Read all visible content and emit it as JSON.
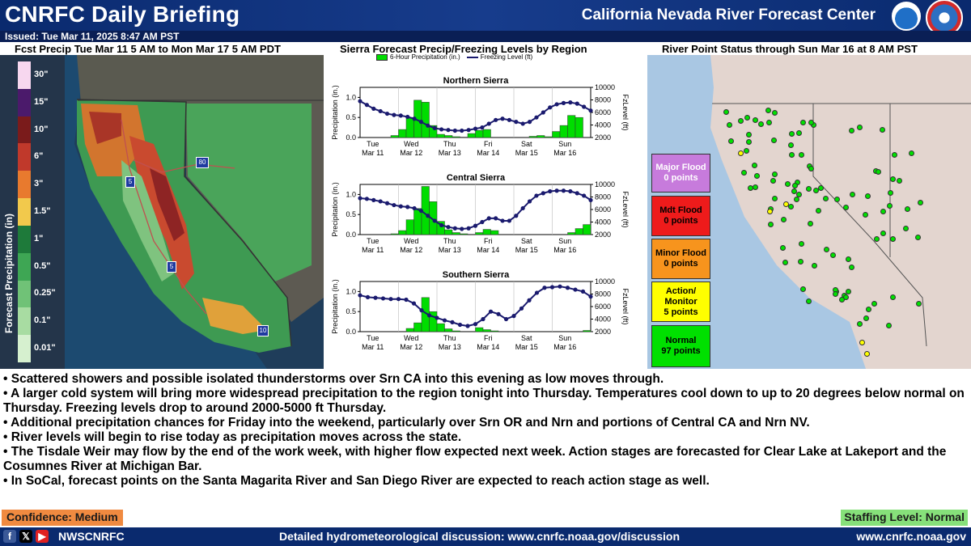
{
  "header": {
    "title": "CNRFC Daily Briefing",
    "center": "California Nevada River Forecast Center",
    "logo_noaa": "NOAA",
    "issued": "Issued: Tue Mar 11, 2025 8:47 AM PST"
  },
  "left_panel": {
    "title": "Fcst Precip Tue Mar 11 5 AM to Mon Mar 17 5 AM PDT",
    "colorbar_label": "Forecast Precipitation (in)",
    "colorbar": [
      {
        "label": "30\"",
        "color": "#f7d7ef"
      },
      {
        "label": "15\"",
        "color": "#4b1a6b"
      },
      {
        "label": "10\"",
        "color": "#7a1b1b"
      },
      {
        "label": "6\"",
        "color": "#c0392b"
      },
      {
        "label": "3\"",
        "color": "#e87a2e"
      },
      {
        "label": "1.5\"",
        "color": "#f2c94c"
      },
      {
        "label": "1\"",
        "color": "#1e7a3a"
      },
      {
        "label": "0.5\"",
        "color": "#3ea654"
      },
      {
        "label": "0.25\"",
        "color": "#70c277"
      },
      {
        "label": "0.1\"",
        "color": "#a8dca2"
      },
      {
        "label": "0.01\"",
        "color": "#d6f0cf"
      }
    ],
    "highways": [
      "80",
      "5",
      "5",
      "10"
    ]
  },
  "mid_panel": {
    "title": "Sierra Forecast Precip/Freezing Levels by Region",
    "legend_precip": "6-Hour Precipitation (in.)",
    "legend_frz": "Freezing Level (ft)",
    "precip_color": "#00dd00",
    "frz_color": "#1a1a6e"
  },
  "chart_data": [
    {
      "type": "bar",
      "title": "Northern Sierra",
      "ylabel": "Precipitation (in.)",
      "y2label": "FzLevel (ft)",
      "ylim": [
        0,
        1.25
      ],
      "y2lim": [
        2000,
        10000
      ],
      "yticks": [
        "0.0",
        "0.5",
        "1.0"
      ],
      "y2ticks": [
        "2000",
        "4000",
        "6000",
        "8000",
        "10000"
      ],
      "day_labels": [
        [
          "Tue",
          "Mar 11"
        ],
        [
          "Wed",
          "Mar 12"
        ],
        [
          "Thu",
          "Mar 13"
        ],
        [
          "Fri",
          "Mar 14"
        ],
        [
          "Sat",
          "Mar 15"
        ],
        [
          "Sun",
          "Mar 16"
        ]
      ],
      "series": [
        {
          "name": "6-Hour Precipitation (in.)",
          "values": [
            0,
            0,
            0,
            0,
            0.05,
            0.2,
            0.5,
            0.93,
            0.88,
            0.3,
            0.08,
            0.05,
            0.02,
            0.01,
            0.1,
            0.18,
            0.2,
            0,
            0,
            0,
            0,
            0,
            0.03,
            0.05,
            0.02,
            0.15,
            0.3,
            0.55,
            0.5,
            0
          ]
        },
        {
          "name": "Freezing Level (ft)",
          "values": [
            7800,
            7200,
            6600,
            6200,
            5800,
            5600,
            5500,
            5300,
            5000,
            4500,
            3900,
            3500,
            3300,
            3200,
            3100,
            3100,
            3200,
            3400,
            3600,
            4200,
            4800,
            5000,
            4800,
            4500,
            4200,
            4500,
            5200,
            6000,
            6800,
            7300,
            7500,
            7600,
            7400,
            6900,
            6300
          ]
        }
      ]
    },
    {
      "type": "bar",
      "title": "Central Sierra",
      "ylabel": "Precipitation (in.)",
      "y2label": "FzLevel (ft)",
      "ylim": [
        0,
        1.25
      ],
      "y2lim": [
        2000,
        10000
      ],
      "yticks": [
        "0.0",
        "0.5",
        "1.0"
      ],
      "y2ticks": [
        "2000",
        "4000",
        "6000",
        "8000",
        "10000"
      ],
      "day_labels": [
        [
          "Tue",
          "Mar 11"
        ],
        [
          "Wed",
          "Mar 12"
        ],
        [
          "Thu",
          "Mar 13"
        ],
        [
          "Fri",
          "Mar 14"
        ],
        [
          "Sat",
          "Mar 15"
        ],
        [
          "Sun",
          "Mar 16"
        ]
      ],
      "series": [
        {
          "name": "6-Hour Precipitation (in.)",
          "values": [
            0,
            0,
            0,
            0,
            0.02,
            0.1,
            0.37,
            0.65,
            1.2,
            0.82,
            0.33,
            0.12,
            0.05,
            0.02,
            0,
            0.05,
            0.13,
            0.1,
            0,
            0,
            0,
            0,
            0,
            0,
            0,
            0,
            0,
            0.05,
            0.15,
            0.25
          ]
        },
        {
          "name": "Freezing Level (ft)",
          "values": [
            7800,
            7700,
            7500,
            7300,
            7000,
            6700,
            6500,
            6400,
            6200,
            5800,
            5000,
            4200,
            3500,
            3200,
            3000,
            2900,
            3000,
            3400,
            4000,
            4600,
            4600,
            4200,
            4200,
            5000,
            6200,
            7300,
            8200,
            8600,
            8900,
            9000,
            9000,
            8900,
            8600,
            8200,
            7500
          ]
        }
      ]
    },
    {
      "type": "bar",
      "title": "Southern Sierra",
      "ylabel": "Precipitation (in.)",
      "y2label": "FzLevel (ft)",
      "ylim": [
        0,
        1.25
      ],
      "y2lim": [
        2000,
        10000
      ],
      "yticks": [
        "0.0",
        "0.5",
        "1.0"
      ],
      "y2ticks": [
        "2000",
        "4000",
        "6000",
        "8000",
        "10000"
      ],
      "day_labels": [
        [
          "Tue",
          "Mar 11"
        ],
        [
          "Wed",
          "Mar 12"
        ],
        [
          "Thu",
          "Mar 13"
        ],
        [
          "Fri",
          "Mar 14"
        ],
        [
          "Sat",
          "Mar 15"
        ],
        [
          "Sun",
          "Mar 16"
        ]
      ],
      "series": [
        {
          "name": "6-Hour Precipitation (in.)",
          "values": [
            0,
            0,
            0,
            0,
            0,
            0,
            0.08,
            0.22,
            0.85,
            0.5,
            0.2,
            0.07,
            0.02,
            0,
            0,
            0.1,
            0.05,
            0.02,
            0,
            0,
            0,
            0,
            0,
            0,
            0,
            0,
            0,
            0,
            0,
            0.03
          ]
        },
        {
          "name": "Freezing Level (ft)",
          "values": [
            7800,
            7500,
            7400,
            7300,
            7200,
            7200,
            7100,
            6500,
            5400,
            4600,
            4200,
            3800,
            3500,
            3100,
            2900,
            3200,
            4000,
            5200,
            4800,
            4000,
            4500,
            5700,
            7000,
            8200,
            9000,
            9100,
            9200,
            9000,
            8700,
            8400,
            7600
          ]
        }
      ]
    }
  ],
  "right_panel": {
    "title": "River Point Status through Sun Mar 16 at 8 AM PST",
    "status": [
      {
        "label": "Major Flood",
        "count": "0 points",
        "color": "#c77bdc",
        "text": "#ffffff"
      },
      {
        "label": "Mdt Flood",
        "count": "0 points",
        "color": "#ee1b1b",
        "text": "#000000"
      },
      {
        "label": "Minor Flood",
        "count": "0 points",
        "color": "#f7941d",
        "text": "#000000"
      },
      {
        "label": "Action/ Monitor",
        "count": "5 points",
        "color": "#ffff00",
        "text": "#000000"
      },
      {
        "label": "Normal",
        "count": "97 points",
        "color": "#00e000",
        "text": "#000000"
      }
    ]
  },
  "bullets": [
    "• Scattered showers and possible isolated thunderstorms over Srn CA into this evening as low moves through.",
    "• A larger cold system will bring more widespread precipitation to the region tonight into Thursday.  Temperatures cool down to up to 20 degrees below normal on Thursday.  Freezing levels drop to around 2000-5000 ft Thursday.",
    "• Additional precipitation chances for Friday into the weekend, particularly over Srn OR and Nrn and portions of Central CA and Nrn NV.",
    "• River levels will begin to rise today as precipitation moves across the state.",
    "• The Tisdale Weir may flow by the end of the work week, with higher flow expected next week.  Action stages are forecasted for Clear Lake at Lakeport and the Cosumnes River at Michigan Bar.",
    "• In SoCal, forecast points on the Santa Magarita River and San Diego River are expected to reach action stage as well."
  ],
  "confidence": "Confidence: Medium",
  "staffing": "Staffing Level: Normal",
  "footer": {
    "handle": "NWSCNRFC",
    "discussion": "Detailed hydrometeorological discussion: www.cnrfc.noaa.gov/discussion",
    "site": "www.cnrfc.noaa.gov"
  }
}
